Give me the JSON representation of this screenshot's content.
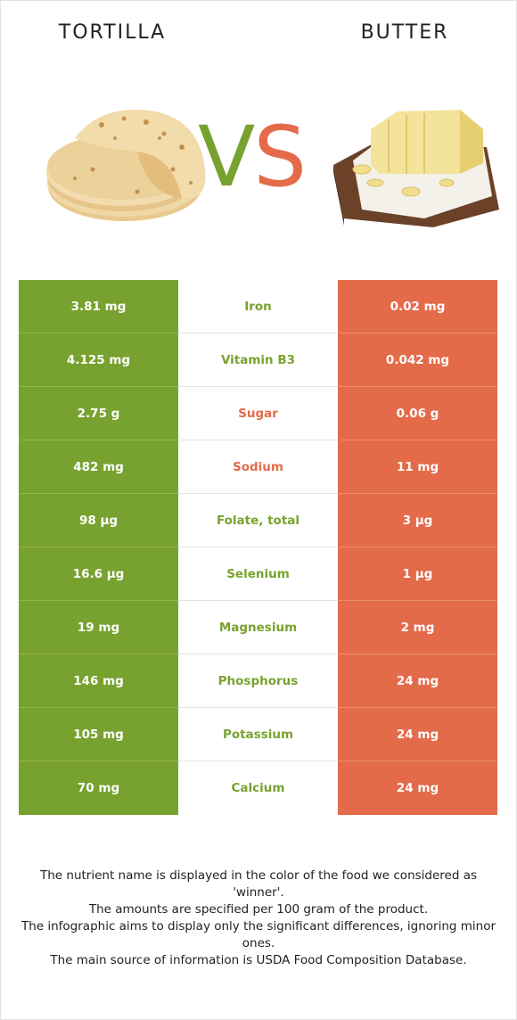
{
  "header": {
    "left_title": "TORTILLA",
    "right_title": "BUTTER",
    "vs_v": "V",
    "vs_s": "S"
  },
  "colors": {
    "winner_left": "#78a22f",
    "winner_right": "#e36b4a"
  },
  "rows": [
    {
      "left": "3.81 mg",
      "nutrient": "Iron",
      "right": "0.02 mg",
      "winner": "left"
    },
    {
      "left": "4.125 mg",
      "nutrient": "Vitamin B3",
      "right": "0.042 mg",
      "winner": "left"
    },
    {
      "left": "2.75 g",
      "nutrient": "Sugar",
      "right": "0.06 g",
      "winner": "right"
    },
    {
      "left": "482 mg",
      "nutrient": "Sodium",
      "right": "11 mg",
      "winner": "right"
    },
    {
      "left": "98 µg",
      "nutrient": "Folate, total",
      "right": "3 µg",
      "winner": "left"
    },
    {
      "left": "16.6 µg",
      "nutrient": "Selenium",
      "right": "1 µg",
      "winner": "left"
    },
    {
      "left": "19 mg",
      "nutrient": "Magnesium",
      "right": "2 mg",
      "winner": "left"
    },
    {
      "left": "146 mg",
      "nutrient": "Phosphorus",
      "right": "24 mg",
      "winner": "left"
    },
    {
      "left": "105 mg",
      "nutrient": "Potassium",
      "right": "24 mg",
      "winner": "left"
    },
    {
      "left": "70 mg",
      "nutrient": "Calcium",
      "right": "24 mg",
      "winner": "left"
    }
  ],
  "footer": {
    "line1": "The nutrient name is displayed in the color of the food we considered as 'winner'.",
    "line2": "The amounts are specified per 100 gram of the product.",
    "line3": "The infographic aims to display only the significant differences, ignoring minor ones.",
    "line4": "The main source of information is USDA Food Composition Database."
  }
}
